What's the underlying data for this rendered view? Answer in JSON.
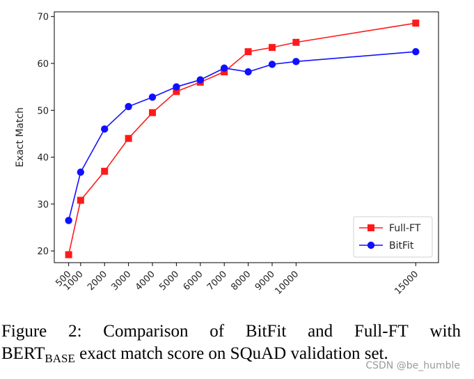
{
  "chart_data": {
    "type": "line",
    "title": "",
    "xlabel": "",
    "ylabel": "Exact Match",
    "x": [
      500,
      1000,
      2000,
      3000,
      4000,
      5000,
      6000,
      7000,
      8000,
      9000,
      10000,
      15000
    ],
    "x_tick_labels": [
      "500",
      "1000",
      "2000",
      "3000",
      "4000",
      "5000",
      "6000",
      "7000",
      "8000",
      "9000",
      "10000",
      "15000"
    ],
    "y_ticks": [
      20,
      30,
      40,
      50,
      60,
      70
    ],
    "xlim": [
      -100,
      15950
    ],
    "ylim": [
      17.5,
      71
    ],
    "grid": false,
    "legend_position": "bottom-right",
    "series": [
      {
        "name": "Full-FT",
        "color": "#ff1a1a",
        "marker": "square",
        "values": [
          19.2,
          30.8,
          37.0,
          44.0,
          49.5,
          54.0,
          56.0,
          58.2,
          62.5,
          63.4,
          64.5,
          68.6
        ]
      },
      {
        "name": "BitFit",
        "color": "#1010ff",
        "marker": "circle",
        "values": [
          26.5,
          36.8,
          46.0,
          50.8,
          52.8,
          55.0,
          56.5,
          59.0,
          58.2,
          59.8,
          60.4,
          62.5
        ]
      }
    ]
  },
  "caption": {
    "line1_words": [
      "Figure",
      "2:",
      "Comparison",
      "of",
      "BitFit",
      "and",
      "Full-FT",
      "with"
    ],
    "line2_prefix": "BERT",
    "line2_subscript": "BASE",
    "line2_rest": " exact match score on SQuAD validation set."
  },
  "watermark": "CSDN @be_humble"
}
